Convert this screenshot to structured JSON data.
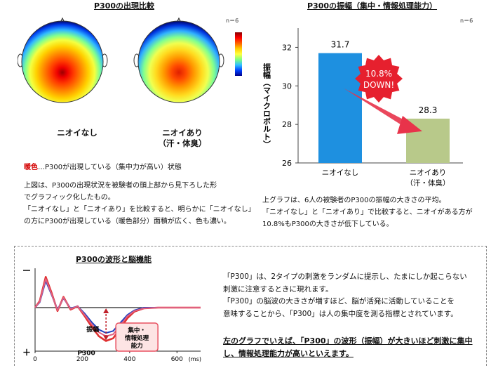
{
  "p300_appearance": {
    "title": "P300の出現比較",
    "n_label": "n＝6",
    "map_without_label": "ニオイなし",
    "map_with_label_line1": "ニオイあり",
    "map_with_label_line2": "（汗・体臭）",
    "legend_key": "暖色",
    "legend_text": "…P300が出現している（集中力が高い）状態",
    "desc_lines": [
      "上図は、P300の出現状況を被験者の頭上部から見下ろした形",
      "でグラフィック化したもの。",
      "「ニオイなし」と「ニオイあり」を比較すると、明らかに「ニオイなし」",
      "の方にP300が出現している（暖色部分）面積が広く、色も濃い。"
    ]
  },
  "amplitude_chart_text": {
    "title": "P300の振幅（集中・情報処理能力）",
    "n_label": "n＝6",
    "callout_line1": "10.8%",
    "callout_line2": "DOWN!",
    "desc_lines": [
      "上グラフは、6人の被験者のP300の振幅の大きさの平均。",
      "「ニオイなし」と「ニオイあり」で比較すると、ニオイがある方が",
      "10.8%もP300の大きさが低下している。"
    ]
  },
  "waveform": {
    "title": "P300の波形と脳機能",
    "amplitude_label": "振幅",
    "peak_label": "P300",
    "function_label_line1": "集中・",
    "function_label_line2": "情報処理",
    "function_label_line3": "能力",
    "desc_lines": [
      "「P300」は、2タイプの刺激をランダムに提示し、たまにしか起こらない",
      "刺激に注意するときに現れます。",
      "「P300」の脳波の大きさが増すほど、脳が活発に活動していることを",
      "意味することから、「P300」は人の集中度を測る指標とされています。"
    ],
    "conclusion_lines": [
      "左のグラフでいえば、「P300」の波形（振幅）が大きいほど刺激に集中",
      "し、情報処理能力が高いといえます。"
    ]
  },
  "chart_data": [
    {
      "type": "bar",
      "title": "P300の振幅（集中・情報処理能力）",
      "ylabel": "振幅（マイクロボルト）",
      "categories": [
        "ニオイなし",
        "ニオイあり（汗・体臭）"
      ],
      "category_lines": [
        [
          "ニオイなし"
        ],
        [
          "ニオイあり",
          "（汗・体臭）"
        ]
      ],
      "values": [
        31.7,
        28.3
      ],
      "value_labels": [
        "31.7",
        "28.3"
      ],
      "bar_colors": [
        "#1e90e0",
        "#b8c98a"
      ],
      "ylim": [
        26,
        33
      ],
      "yticks": [
        26,
        28,
        30,
        32
      ],
      "ytick_labels": [
        "26",
        "28",
        "30",
        "32"
      ],
      "grid": false
    },
    {
      "type": "line",
      "title": "P300の波形と脳機能",
      "xlabel": "(ms)",
      "xlim": [
        0,
        700
      ],
      "xticks": [
        0,
        200,
        400,
        600
      ],
      "xtick_labels": [
        "0",
        "200",
        "400",
        "600"
      ],
      "y_marks": [
        "－",
        "＋"
      ],
      "series": [
        {
          "color": "#e03030",
          "x": [
            0,
            20,
            45,
            70,
            95,
            120,
            150,
            180,
            210,
            240,
            270,
            300,
            330,
            360,
            390,
            420,
            460,
            520,
            600,
            700
          ],
          "y": [
            0,
            1.0,
            4.6,
            2.2,
            -0.5,
            1.6,
            -0.3,
            0.2,
            -1.3,
            -2.9,
            -4.3,
            -5.0,
            -4.6,
            -3.1,
            -1.6,
            -0.6,
            -0.1,
            0,
            0,
            0
          ]
        },
        {
          "color": "#2040c0",
          "x": [
            0,
            20,
            45,
            70,
            95,
            120,
            150,
            180,
            210,
            240,
            270,
            300,
            330,
            360,
            390,
            420,
            460,
            520,
            600,
            700
          ],
          "y": [
            0,
            0.8,
            4.0,
            1.9,
            -0.3,
            1.4,
            -0.1,
            0.2,
            -0.9,
            -2.2,
            -3.3,
            -3.8,
            -3.5,
            -2.3,
            -1.1,
            -0.4,
            0,
            0,
            0,
            0
          ]
        },
        {
          "color": "#e06080",
          "x": [
            0,
            20,
            45,
            70,
            95,
            120,
            150,
            180,
            210,
            240,
            270,
            300,
            330,
            360,
            390,
            420,
            460,
            520,
            600,
            700
          ],
          "y": [
            0,
            0.9,
            4.3,
            2.0,
            -0.4,
            1.5,
            -0.2,
            0.2,
            -1.1,
            -2.5,
            -3.7,
            -4.3,
            -4.0,
            -2.7,
            -1.3,
            -0.5,
            -0.1,
            0,
            0,
            0
          ]
        }
      ]
    }
  ]
}
